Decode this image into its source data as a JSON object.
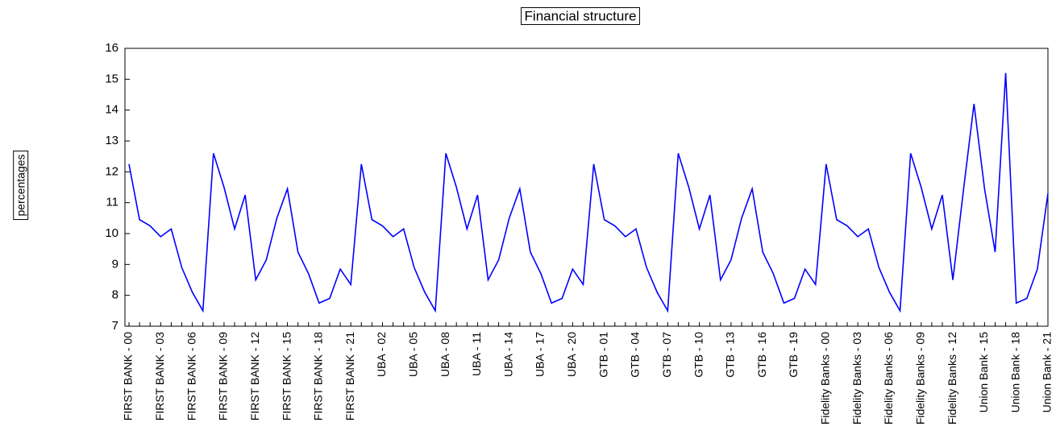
{
  "chart_data": {
    "type": "line",
    "title": "Financial structure",
    "y_label": "percentages",
    "categories": [
      "FIRST BANK - 00",
      null,
      null,
      "FIRST BANK - 03",
      null,
      null,
      "FIRST BANK - 06",
      null,
      null,
      "FIRST BANK - 09",
      null,
      null,
      "FIRST BANK - 12",
      null,
      null,
      "FIRST BANK - 15",
      null,
      null,
      "FIRST BANK - 18",
      null,
      null,
      "FIRST BANK - 21",
      null,
      null,
      "UBA - 02",
      null,
      null,
      "UBA - 05",
      null,
      null,
      "UBA - 08",
      null,
      null,
      "UBA - 11",
      null,
      null,
      "UBA - 14",
      null,
      null,
      "UBA - 17",
      null,
      null,
      "UBA - 20",
      null,
      null,
      "GTB - 01",
      null,
      null,
      "GTB - 04",
      null,
      null,
      "GTB - 07",
      null,
      null,
      "GTB - 10",
      null,
      null,
      "GTB - 13",
      null,
      null,
      "GTB - 16",
      null,
      null,
      "GTB - 19",
      null,
      null,
      "Fidelity Banks - 00",
      null,
      null,
      "Fidelity Banks - 03",
      null,
      null,
      "Fidelity Banks - 06",
      null,
      null,
      "Fidelity Banks - 09",
      null,
      null,
      "Fidelity Banks - 12",
      null,
      null,
      "Union Bank - 15",
      null,
      null,
      "Union Bank - 18",
      null,
      null,
      "Union Bank - 21"
    ],
    "series": [
      {
        "name": "Financial structure",
        "color": "#0000ff",
        "values": [
          12.25,
          10.45,
          10.25,
          9.9,
          10.15,
          8.9,
          8.1,
          7.5,
          12.6,
          11.5,
          10.15,
          11.25,
          8.5,
          9.15,
          10.5,
          11.45,
          9.4,
          8.7,
          7.75,
          7.9,
          8.85,
          8.35,
          12.25,
          10.45,
          10.25,
          9.9,
          10.15,
          8.9,
          8.1,
          7.5,
          12.6,
          11.5,
          10.15,
          11.25,
          8.5,
          9.15,
          10.5,
          11.45,
          9.4,
          8.7,
          7.75,
          7.9,
          8.85,
          8.35,
          12.25,
          10.45,
          10.25,
          9.9,
          10.15,
          8.9,
          8.1,
          7.5,
          12.6,
          11.5,
          10.15,
          11.25,
          8.5,
          9.15,
          10.5,
          11.45,
          9.4,
          8.7,
          7.75,
          7.9,
          8.85,
          8.35,
          12.25,
          10.45,
          10.25,
          9.9,
          10.15,
          8.9,
          8.1,
          7.5,
          12.6,
          11.5,
          10.15,
          11.25,
          8.5,
          11.4,
          14.2,
          11.45,
          9.4,
          15.2,
          7.75,
          7.9,
          8.85,
          11.3
        ]
      }
    ],
    "ylim": [
      7,
      16
    ],
    "yticks": [
      7,
      8,
      9,
      10,
      11,
      12,
      13,
      14,
      15,
      16
    ],
    "grid": false
  }
}
